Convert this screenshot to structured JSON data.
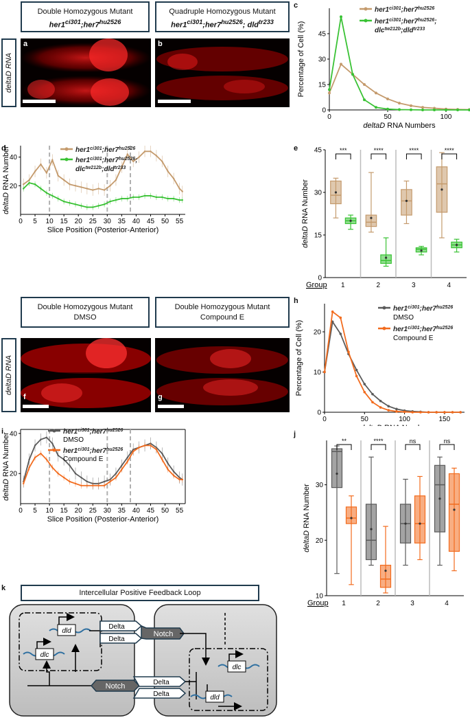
{
  "colors": {
    "tan": "#c49a6c",
    "green": "#39c234",
    "gray": "#5a5a5a",
    "orange": "#f26b1d",
    "dashed": "#b0b0b0",
    "navy": "#1f3a4d"
  },
  "panels": {
    "a": {
      "letter": "a",
      "title": "Double Homozygous Mutant",
      "genotype": "her1ci301;her7hu2526"
    },
    "b": {
      "letter": "b",
      "title": "Quadruple Homozygous Mutant",
      "genotype": "her1ci301;her7hu2526; dlctw212b;dldtr233"
    },
    "f": {
      "letter": "f",
      "title": "Double Homozygous Mutant",
      "sub": "DMSO"
    },
    "g": {
      "letter": "g",
      "title": "Double Homozygous Mutant",
      "sub": "Compound E"
    },
    "side_label": "deltaD RNA"
  },
  "panel_c": {
    "letter": "c",
    "legend": [
      "her1ci301;her7hu2526",
      "her1ci301;her7hu2526; dlctw212b;dldtr233"
    ]
  },
  "panel_d": {
    "letter": "d",
    "legend": [
      "her1ci301;her7hu2526",
      "her1ci301;her7hu2526; dlctw212b;dldtr233"
    ]
  },
  "panel_e": {
    "letter": "e",
    "sig": [
      "***",
      "****",
      "****",
      "****"
    ],
    "group_label": "Group"
  },
  "panel_h": {
    "letter": "h",
    "legend": [
      "her1ci301;her7hu2526",
      "DMSO",
      "her1ci301;her7hu2526",
      "Compound E"
    ]
  },
  "panel_i": {
    "letter": "i",
    "legend": [
      "her1ci301;her7hu2526",
      "DMSO",
      "her1ci301;her7hu2526",
      "Compound E"
    ]
  },
  "panel_j": {
    "letter": "j",
    "sig": [
      "**",
      "****",
      "ns",
      "ns"
    ],
    "group_label": "Group"
  },
  "panel_k": {
    "letter": "k",
    "title": "Intercellular Positive Feedback Loop",
    "delta": "Delta",
    "notch": "Notch",
    "dld": "dld",
    "dlc": "dlc"
  },
  "chart_data": [
    {
      "id": "c",
      "type": "line",
      "xlabel": "deltaD RNA Numbers",
      "ylabel": "Percentage of Cell (%)",
      "xlim": [
        0,
        120
      ],
      "ylim": [
        0,
        60
      ],
      "xticks": [
        0,
        50,
        100
      ],
      "yticks": [
        0,
        15,
        30,
        45
      ],
      "series": [
        {
          "name": "her1ci301;her7hu2526",
          "color": "tan",
          "x": [
            0,
            10,
            20,
            30,
            40,
            50,
            60,
            70,
            80,
            90,
            100,
            110,
            120
          ],
          "y": [
            10,
            27,
            21,
            15,
            10,
            6.5,
            4,
            2.5,
            1.5,
            1,
            0.5,
            0.3,
            0.2
          ]
        },
        {
          "name": "her1ci301;her7hu2526;dlctw212b;dldtr233",
          "color": "green",
          "x": [
            0,
            10,
            20,
            30,
            40,
            50,
            60,
            70,
            80,
            90,
            100,
            110,
            120
          ],
          "y": [
            12,
            55,
            21,
            6,
            1.5,
            0.5,
            0.2,
            0.1,
            0,
            0,
            0,
            0,
            0
          ]
        }
      ]
    },
    {
      "id": "d",
      "type": "line",
      "xlabel": "Slice Position (Posterior-Anterior)",
      "ylabel": "deltaD RNA Number",
      "xlim": [
        0,
        57
      ],
      "ylim": [
        0,
        48
      ],
      "xticks": [
        0,
        5,
        10,
        15,
        20,
        25,
        30,
        35,
        40,
        45,
        50,
        55
      ],
      "yticks": [
        20,
        40
      ],
      "vlines": [
        10,
        30,
        38
      ],
      "series": [
        {
          "name": "her1ci301;her7hu2526",
          "color": "tan",
          "x": [
            1,
            3,
            5,
            7,
            9,
            11,
            13,
            15,
            17,
            19,
            21,
            23,
            25,
            27,
            29,
            31,
            33,
            35,
            37,
            39,
            41,
            43,
            45,
            47,
            49,
            51,
            53,
            55,
            56
          ],
          "y": [
            21,
            24,
            30,
            35,
            29,
            38,
            27,
            24,
            21,
            20,
            19,
            18,
            17,
            18,
            17,
            20,
            24,
            33,
            42,
            37,
            40,
            44,
            44,
            41,
            37,
            30,
            25,
            18,
            16
          ]
        },
        {
          "name": "her1ci301;her7hu2526;dlctw212b;dldtr233",
          "color": "green",
          "x": [
            1,
            3,
            5,
            7,
            9,
            11,
            13,
            15,
            17,
            19,
            21,
            23,
            25,
            27,
            29,
            31,
            33,
            35,
            37,
            39,
            41,
            43,
            45,
            47,
            49,
            51,
            53,
            55,
            56
          ],
          "y": [
            18,
            22,
            21,
            18,
            15,
            13,
            11,
            9,
            8,
            7,
            6,
            5,
            5,
            6,
            7,
            9,
            10,
            11,
            11,
            12,
            12,
            13,
            13,
            12,
            12,
            11,
            11,
            10,
            10
          ]
        }
      ]
    },
    {
      "id": "e",
      "type": "box",
      "ylabel": "deltaD RNA Number",
      "ylim": [
        0,
        45
      ],
      "yticks": [
        0,
        15,
        30,
        45
      ],
      "categories": [
        "1",
        "2",
        "3",
        "4"
      ],
      "series": [
        {
          "name": "her1ci301;her7hu2526",
          "color": "tan",
          "boxes": [
            [
              21,
              26,
              29,
              34,
              35,
              30
            ],
            [
              16,
              18,
              19.5,
              22,
              37,
              21
            ],
            [
              19,
              22,
              27,
              31,
              34,
              27
            ],
            [
              14,
              23,
              33,
              39,
              44,
              31
            ]
          ]
        },
        {
          "name": "her1ci301;her7hu2526;dlctw212b;dldtr233",
          "color": "green",
          "boxes": [
            [
              17,
              19,
              20,
              21,
              22,
              20
            ],
            [
              4,
              5,
              6,
              8,
              14,
              7
            ],
            [
              8,
              9,
              10,
              10.5,
              11,
              9.5
            ],
            [
              9,
              10.5,
              11.5,
              12.5,
              13.5,
              11.5
            ]
          ]
        }
      ]
    },
    {
      "id": "h",
      "type": "line",
      "xlabel": "deltaD RNA Number",
      "ylabel": "Percentage of Cell (%)",
      "xlim": [
        0,
        175
      ],
      "ylim": [
        0,
        27
      ],
      "xticks": [
        0,
        50,
        100,
        150
      ],
      "yticks": [
        0,
        10,
        20
      ],
      "series": [
        {
          "name": "DMSO",
          "color": "gray",
          "x": [
            0,
            10,
            20,
            30,
            40,
            50,
            60,
            70,
            80,
            90,
            100,
            110,
            120,
            130,
            140,
            150,
            160,
            170
          ],
          "y": [
            10,
            22.5,
            19.5,
            14.5,
            10.5,
            7,
            4.5,
            2.8,
            1.5,
            0.8,
            0.4,
            0.2,
            0.1,
            0,
            0,
            0,
            0,
            0
          ]
        },
        {
          "name": "Compound E",
          "color": "orange",
          "x": [
            0,
            10,
            20,
            30,
            40,
            50,
            60,
            70,
            80,
            90,
            100,
            110,
            120,
            130,
            140,
            150,
            160,
            170
          ],
          "y": [
            10,
            25,
            23.5,
            15,
            9,
            5,
            2.5,
            1.2,
            0.5,
            0.2,
            0.1,
            0,
            0,
            0,
            0,
            0,
            0,
            0
          ]
        }
      ]
    },
    {
      "id": "i",
      "type": "line",
      "xlabel": "Slice Position (Posterior-Anterior)",
      "ylabel": "deltaD RNA Number",
      "xlim": [
        0,
        57
      ],
      "ylim": [
        5,
        42
      ],
      "xticks": [
        0,
        5,
        10,
        15,
        20,
        25,
        30,
        35,
        40,
        45,
        50,
        55
      ],
      "yticks": [
        20,
        40
      ],
      "vlines": [
        10,
        30,
        38
      ],
      "series": [
        {
          "name": "DMSO",
          "color": "gray",
          "x": [
            1,
            3,
            5,
            7,
            9,
            11,
            13,
            15,
            17,
            19,
            21,
            23,
            25,
            27,
            29,
            31,
            33,
            35,
            37,
            39,
            41,
            43,
            45,
            47,
            49,
            51,
            53,
            55,
            56
          ],
          "y": [
            16,
            27,
            34,
            37,
            38,
            35,
            29,
            27,
            24,
            20,
            18,
            16,
            15,
            15,
            16,
            17,
            20,
            24,
            28,
            32,
            33,
            34,
            35,
            33,
            30,
            25,
            21,
            18,
            17
          ]
        },
        {
          "name": "Compound E",
          "color": "orange",
          "x": [
            1,
            3,
            5,
            7,
            9,
            11,
            13,
            15,
            17,
            19,
            21,
            23,
            25,
            27,
            29,
            31,
            33,
            35,
            37,
            39,
            41,
            43,
            45,
            47,
            49,
            51,
            53,
            55,
            56
          ],
          "y": [
            15,
            23,
            28,
            30,
            27,
            23,
            20,
            18,
            16,
            15,
            14,
            14,
            14,
            14,
            14,
            16,
            18,
            22,
            26,
            31,
            33,
            34,
            34,
            32,
            27,
            22,
            19,
            17,
            17
          ]
        }
      ]
    },
    {
      "id": "j",
      "type": "box",
      "ylabel": "deltaD RNA Number",
      "ylim": [
        10,
        38
      ],
      "yticks": [
        10,
        20,
        30
      ],
      "categories": [
        "1",
        "2",
        "3",
        "4"
      ],
      "series": [
        {
          "name": "DMSO",
          "color": "gray",
          "boxes": [
            [
              14,
              29.5,
              36,
              36.5,
              37,
              32
            ],
            [
              15.5,
              16.5,
              20,
              26.5,
              35,
              22
            ],
            [
              15.5,
              19.5,
              23,
              26.5,
              31,
              23
            ],
            [
              15.5,
              21.5,
              30,
              33.5,
              35,
              27.5
            ]
          ]
        },
        {
          "name": "Compound E",
          "color": "orange",
          "boxes": [
            [
              12,
              23,
              24,
              26,
              28,
              24
            ],
            [
              10.5,
              11.5,
              13,
              15.5,
              22.5,
              14.5
            ],
            [
              16.5,
              19.5,
              23,
              28,
              31.5,
              23
            ],
            [
              14.5,
              18,
              26.5,
              32,
              33,
              25.5
            ]
          ]
        }
      ]
    }
  ]
}
